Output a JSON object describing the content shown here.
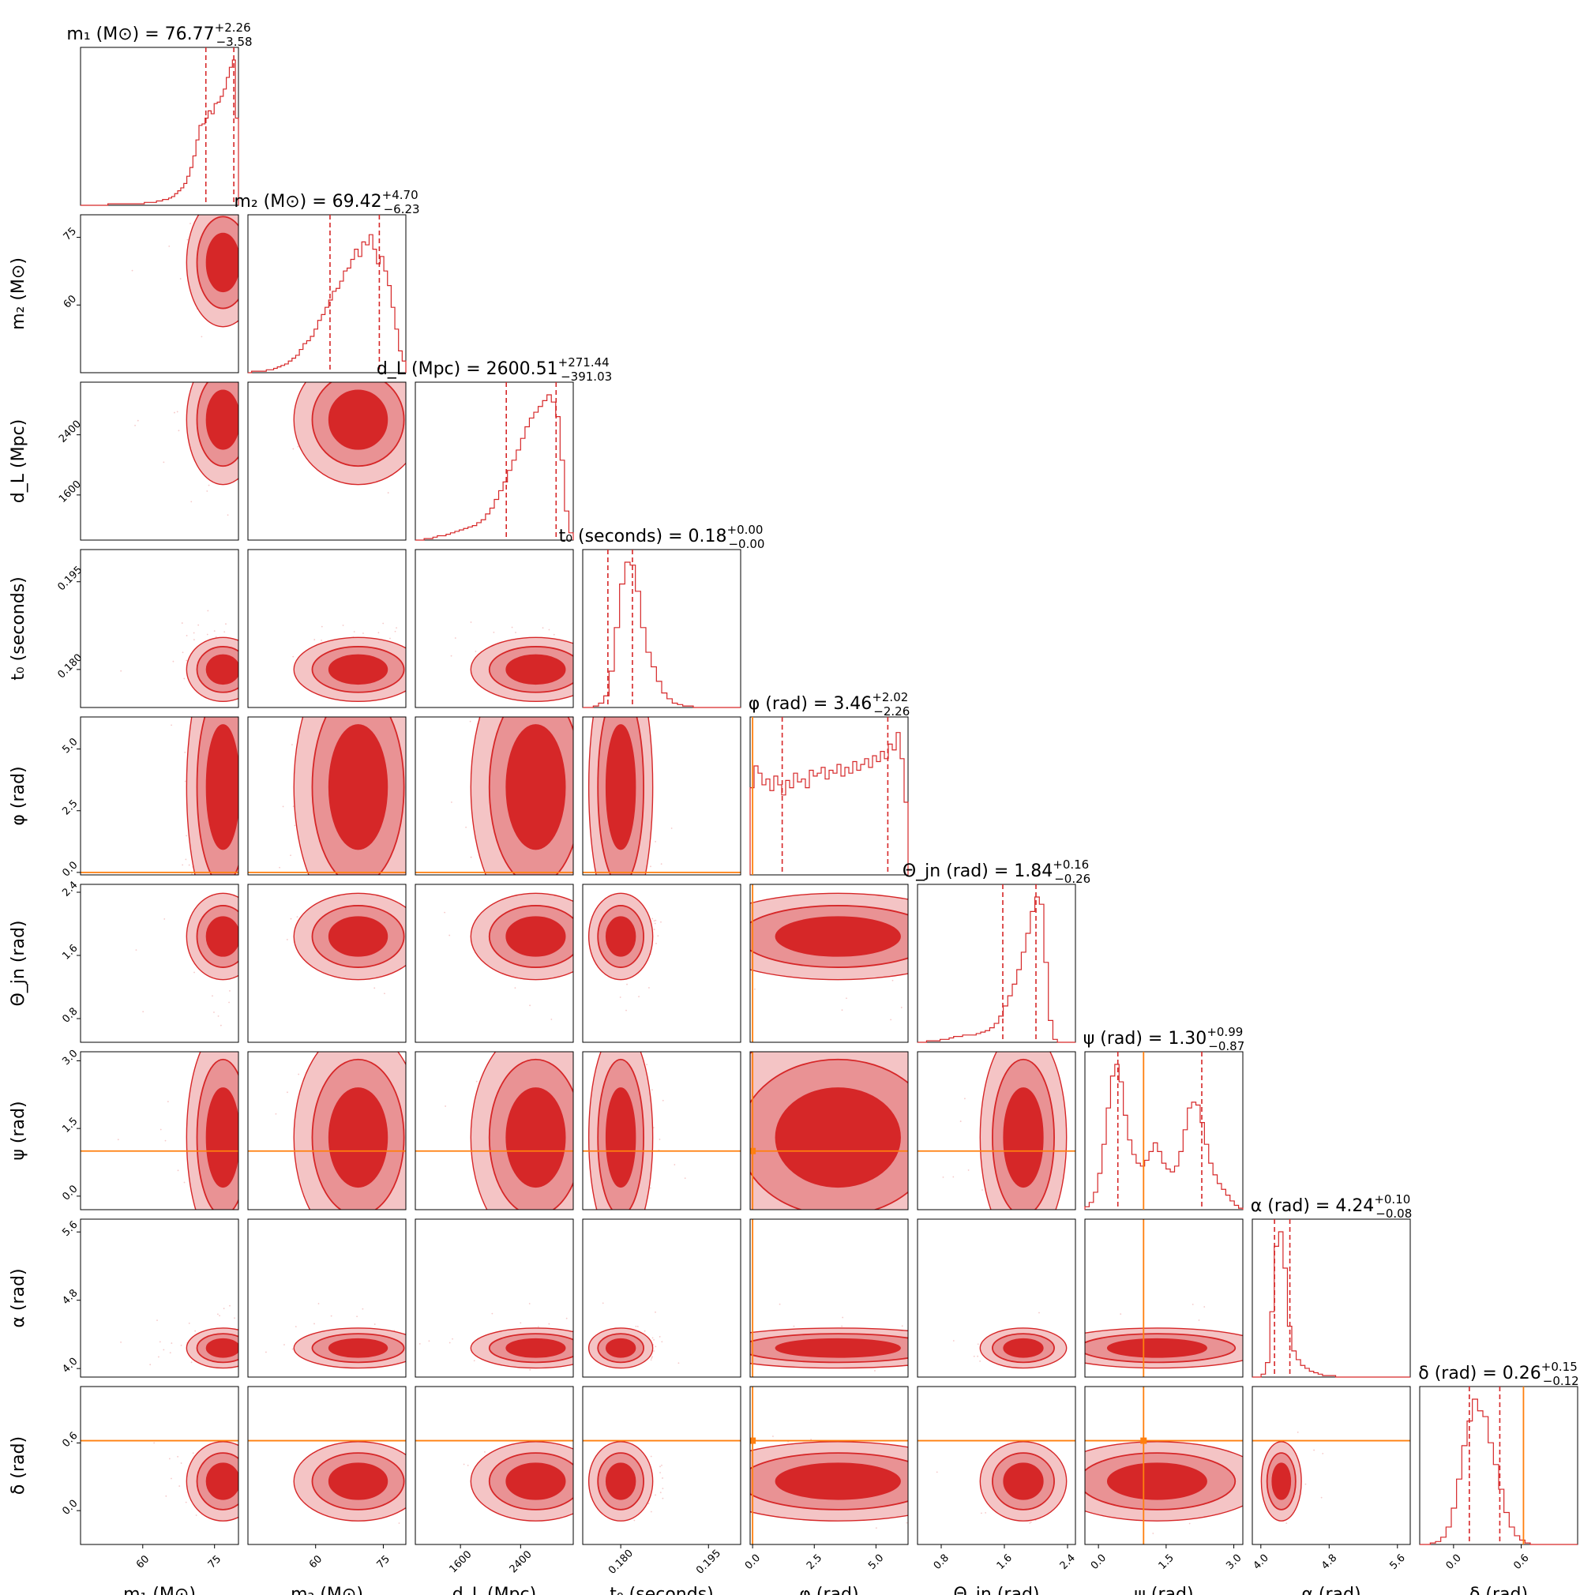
{
  "chart_data": {
    "type": "corner",
    "colors": {
      "posterior": "#d62728",
      "truth": "#ff7f0e",
      "axes": "#000000"
    },
    "parameters": [
      {
        "symbol": "m_1",
        "unit": "M⊙",
        "label": "m₁ (M⊙)",
        "title_prefix": "m₁ (M⊙) = ",
        "median": "76.77",
        "plus": "+2.26",
        "minus": "−3.58",
        "range": [
          47.0,
          80.0
        ],
        "ticks": [
          60,
          75
        ],
        "tick_labels": [
          "60",
          "75"
        ],
        "q16": 73.19,
        "q84": 79.03,
        "truth": null,
        "hist": [
          0.0,
          0.0,
          0.0,
          0.0,
          0.0,
          0.0,
          0.0,
          0.0,
          0.0,
          0.01,
          0.01,
          0.01,
          0.01,
          0.01,
          0.01,
          0.01,
          0.01,
          0.01,
          0.01,
          0.01,
          0.01,
          0.02,
          0.02,
          0.02,
          0.02,
          0.03,
          0.03,
          0.04,
          0.04,
          0.05,
          0.06,
          0.08,
          0.1,
          0.12,
          0.15,
          0.2,
          0.26,
          0.34,
          0.45,
          0.55,
          0.56,
          0.6,
          0.65,
          0.63,
          0.7,
          0.71,
          0.75,
          0.8,
          0.88,
          0.95,
          1.0,
          0.6
        ]
      },
      {
        "symbol": "m_2",
        "unit": "M⊙",
        "label": "m₂ (M⊙)",
        "title_prefix": "m₂ (M⊙) = ",
        "median": "69.42",
        "plus": "+4.70",
        "minus": "−6.23",
        "range": [
          45.0,
          80.0
        ],
        "ticks": [
          60,
          75
        ],
        "tick_labels": [
          "60",
          "75"
        ],
        "q16": 63.19,
        "q84": 74.12,
        "truth": null,
        "hist": [
          0.0,
          0.01,
          0.01,
          0.01,
          0.01,
          0.02,
          0.02,
          0.03,
          0.04,
          0.05,
          0.06,
          0.08,
          0.1,
          0.12,
          0.16,
          0.2,
          0.22,
          0.25,
          0.3,
          0.36,
          0.4,
          0.45,
          0.5,
          0.56,
          0.58,
          0.63,
          0.7,
          0.72,
          0.78,
          0.85,
          0.8,
          0.9,
          0.88,
          0.95,
          0.85,
          0.75,
          0.8,
          0.7,
          0.6,
          0.45,
          0.3,
          0.15,
          0.08
        ]
      },
      {
        "symbol": "d_L",
        "unit": "Mpc",
        "label": "d_L (Mpc)",
        "title_prefix": "d_L (Mpc) = ",
        "median": "2600.51",
        "plus": "+271.44",
        "minus": "−391.03",
        "range": [
          1000,
          3100
        ],
        "ticks": [
          1600,
          2400
        ],
        "tick_labels": [
          "1600",
          "2400"
        ],
        "q16": 2209.48,
        "q84": 2871.95,
        "truth": null,
        "hist": [
          0.0,
          0.0,
          0.01,
          0.01,
          0.02,
          0.03,
          0.03,
          0.04,
          0.05,
          0.06,
          0.07,
          0.08,
          0.09,
          0.1,
          0.12,
          0.14,
          0.18,
          0.22,
          0.28,
          0.34,
          0.4,
          0.48,
          0.55,
          0.62,
          0.7,
          0.78,
          0.84,
          0.88,
          0.92,
          0.96,
          1.0,
          0.95,
          0.85,
          0.55,
          0.2,
          0.05
        ]
      },
      {
        "symbol": "t_0",
        "unit": "seconds",
        "label": "t₀ (seconds)",
        "title_prefix": "t₀ (seconds) = ",
        "median": "0.18",
        "plus": "+0.00",
        "minus": "−0.00",
        "range": [
          0.1735,
          0.2005
        ],
        "ticks": [
          0.18,
          0.195
        ],
        "tick_labels": [
          "0.180",
          "0.195"
        ],
        "q16": 0.1778,
        "q84": 0.182,
        "truth": null,
        "hist": [
          0.0,
          0.0,
          0.01,
          0.03,
          0.08,
          0.25,
          0.55,
          0.85,
          1.0,
          0.98,
          0.8,
          0.55,
          0.38,
          0.28,
          0.18,
          0.1,
          0.06,
          0.03,
          0.02,
          0.01,
          0.01,
          0.0,
          0.0,
          0.0,
          0.0,
          0.0,
          0.0,
          0.0,
          0.0,
          0.0
        ]
      },
      {
        "symbol": "φ",
        "unit": "rad",
        "label": "φ (rad)",
        "title_prefix": "φ (rad) = ",
        "median": "3.46",
        "plus": "+2.02",
        "minus": "−2.26",
        "range": [
          -0.1,
          6.3
        ],
        "ticks": [
          0.0,
          2.5,
          5.0
        ],
        "tick_labels": [
          "0.0",
          "2.5",
          "5.0"
        ],
        "q16": 1.2,
        "q84": 5.48,
        "truth": 0.0,
        "hist": [
          0.6,
          0.75,
          0.7,
          0.62,
          0.66,
          0.58,
          0.68,
          0.62,
          0.55,
          0.65,
          0.6,
          0.7,
          0.64,
          0.66,
          0.6,
          0.72,
          0.68,
          0.7,
          0.74,
          0.66,
          0.72,
          0.7,
          0.76,
          0.68,
          0.74,
          0.7,
          0.78,
          0.72,
          0.76,
          0.8,
          0.74,
          0.82,
          0.78,
          0.85,
          0.8,
          0.9,
          0.86,
          0.98,
          0.8,
          0.5
        ]
      },
      {
        "symbol": "Θ_jn",
        "unit": "rad",
        "label": "Θ_jn (rad)",
        "title_prefix": "Θ_jn (rad) = ",
        "median": "1.84",
        "plus": "+0.16",
        "minus": "−0.26",
        "range": [
          0.5,
          2.5
        ],
        "ticks": [
          0.8,
          1.6,
          2.4
        ],
        "tick_labels": [
          "0.8",
          "1.6",
          "2.4"
        ],
        "q16": 1.58,
        "q84": 2.0,
        "truth": null,
        "hist": [
          0.0,
          0.0,
          0.01,
          0.01,
          0.01,
          0.02,
          0.02,
          0.03,
          0.04,
          0.04,
          0.05,
          0.05,
          0.05,
          0.06,
          0.07,
          0.08,
          0.1,
          0.13,
          0.18,
          0.25,
          0.32,
          0.4,
          0.5,
          0.62,
          0.75,
          0.9,
          1.0,
          0.95,
          0.55,
          0.15,
          0.02,
          0.0,
          0.0,
          0.0,
          0.0
        ]
      },
      {
        "symbol": "ψ",
        "unit": "rad",
        "label": "ψ (rad)",
        "title_prefix": "ψ (rad) = ",
        "median": "1.30",
        "plus": "+0.99",
        "minus": "−0.87",
        "range": [
          -0.3,
          3.2
        ],
        "ticks": [
          0.0,
          1.5,
          3.0
        ],
        "tick_labels": [
          "0.0",
          "1.5",
          "3.0"
        ],
        "q16": 0.43,
        "q84": 2.29,
        "truth": 1.0,
        "hist": [
          0.02,
          0.05,
          0.12,
          0.25,
          0.45,
          0.7,
          0.92,
          1.0,
          0.88,
          0.65,
          0.48,
          0.38,
          0.32,
          0.3,
          0.34,
          0.4,
          0.46,
          0.4,
          0.32,
          0.28,
          0.26,
          0.3,
          0.4,
          0.55,
          0.7,
          0.74,
          0.72,
          0.6,
          0.45,
          0.32,
          0.24,
          0.18,
          0.14,
          0.1,
          0.06,
          0.03,
          0.01
        ]
      },
      {
        "symbol": "α",
        "unit": "rad",
        "label": "α (rad)",
        "title_prefix": "α (rad) = ",
        "median": "4.24",
        "plus": "+0.10",
        "minus": "−0.08",
        "range": [
          3.9,
          5.75
        ],
        "ticks": [
          4.0,
          4.8,
          5.6
        ],
        "tick_labels": [
          "4.0",
          "4.8",
          "5.6"
        ],
        "q16": 4.16,
        "q84": 4.34,
        "truth": null,
        "hist": [
          0.0,
          0.0,
          0.02,
          0.1,
          0.45,
          0.9,
          1.0,
          0.75,
          0.35,
          0.18,
          0.12,
          0.08,
          0.06,
          0.04,
          0.03,
          0.02,
          0.01,
          0.01,
          0.01,
          0.0,
          0.0,
          0.0,
          0.0,
          0.0,
          0.0,
          0.0,
          0.0,
          0.0,
          0.0,
          0.0,
          0.0,
          0.0,
          0.0,
          0.0,
          0.0,
          0.0
        ]
      },
      {
        "symbol": "δ",
        "unit": "rad",
        "label": "δ (rad)",
        "title_prefix": "δ (rad) = ",
        "median": "0.26",
        "plus": "+0.15",
        "minus": "−0.12",
        "range": [
          -0.3,
          1.1
        ],
        "ticks": [
          0.0,
          0.6
        ],
        "tick_labels": [
          "0.0",
          "0.6"
        ],
        "q16": 0.14,
        "q84": 0.41,
        "truth": 0.62,
        "hist": [
          0.0,
          0.0,
          0.01,
          0.02,
          0.05,
          0.12,
          0.25,
          0.45,
          0.68,
          0.85,
          1.0,
          0.92,
          0.88,
          0.7,
          0.55,
          0.38,
          0.22,
          0.12,
          0.06,
          0.03,
          0.01,
          0.0,
          0.0,
          0.0,
          0.0,
          0.0,
          0.0,
          0.0,
          0.0,
          0.0
        ]
      }
    ]
  }
}
